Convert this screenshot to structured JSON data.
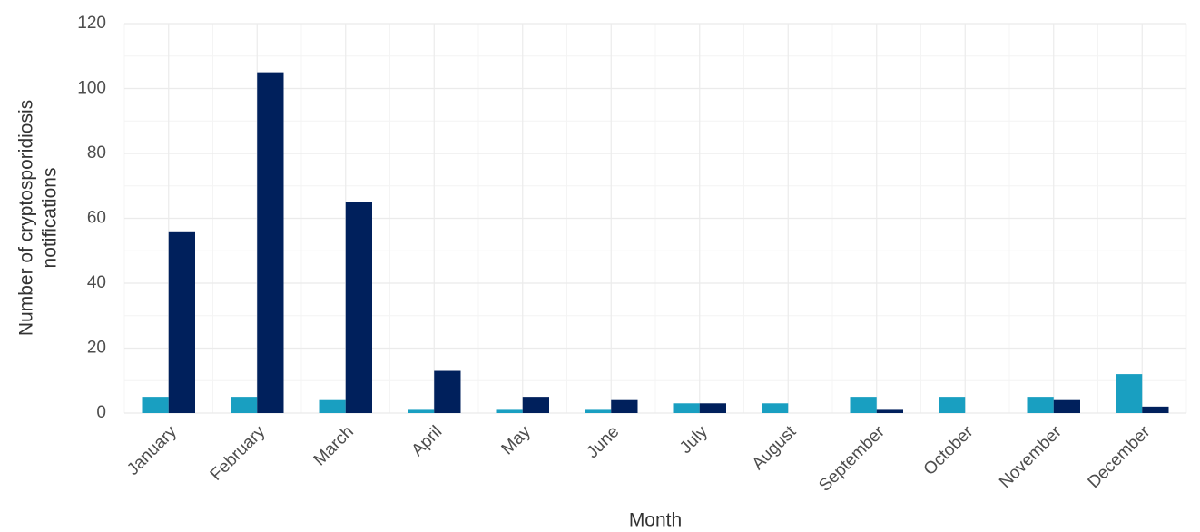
{
  "chart_data": {
    "type": "bar",
    "xlabel": "Month",
    "ylabel": [
      "Number of cryptosporidiosis",
      "notifications"
    ],
    "categories": [
      "January",
      "February",
      "March",
      "April",
      "May",
      "June",
      "July",
      "August",
      "September",
      "October",
      "November",
      "December"
    ],
    "series": [
      {
        "color": "#199fc1",
        "values": [
          5,
          5,
          4,
          1,
          1,
          1,
          3,
          3,
          5,
          5,
          5,
          12
        ]
      },
      {
        "color": "#00205c",
        "values": [
          56,
          105,
          65,
          13,
          5,
          4,
          3,
          0,
          1,
          0,
          4,
          2
        ]
      }
    ],
    "ylim": [
      0,
      120
    ],
    "yticks": [
      0,
      20,
      40,
      60,
      80,
      100,
      120
    ],
    "grid": true
  }
}
